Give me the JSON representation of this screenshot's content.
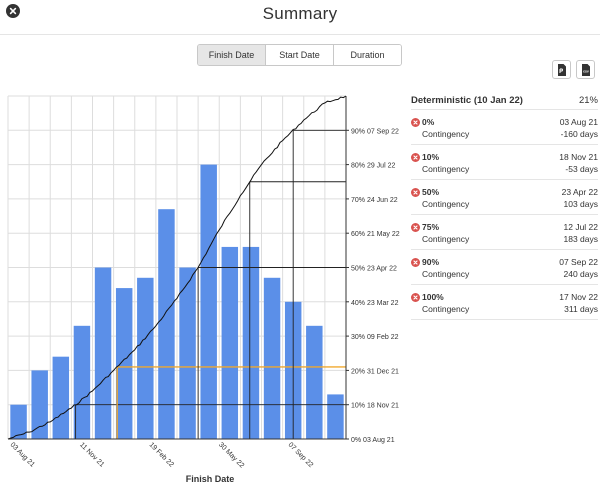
{
  "header": {
    "title": "Summary",
    "close_icon": "close-icon"
  },
  "view_toggle": {
    "options": [
      "Finish Date",
      "Start Date",
      "Duration"
    ],
    "selected": "Finish Date"
  },
  "export": {
    "buttons": [
      "pdf-export-icon",
      "csv-export-icon"
    ],
    "csv_text": "csv"
  },
  "results": {
    "deterministic": {
      "label": "Deterministic (10 Jan 22)",
      "percent": "21%"
    },
    "rows": [
      {
        "label": "0%",
        "date": "03 Aug 21",
        "contingency_label": "Contingency",
        "contingency": "-160 days"
      },
      {
        "label": "10%",
        "date": "18 Nov 21",
        "contingency_label": "Contingency",
        "contingency": "-53 days"
      },
      {
        "label": "50%",
        "date": "23 Apr 22",
        "contingency_label": "Contingency",
        "contingency": "103 days"
      },
      {
        "label": "75%",
        "date": "12 Jul 22",
        "contingency_label": "Contingency",
        "contingency": "183 days"
      },
      {
        "label": "90%",
        "date": "07 Sep 22",
        "contingency_label": "Contingency",
        "contingency": "240 days"
      },
      {
        "label": "100%",
        "date": "17 Nov 22",
        "contingency_label": "Contingency",
        "contingency": "311 days"
      }
    ]
  },
  "chart_data": {
    "type": "bar",
    "xlabel": "Finish Date",
    "x_tick_labels": [
      "03 Aug 21",
      "11 Nov 21",
      "19 Feb 22",
      "30 May 22",
      "07 Sep 22"
    ],
    "histogram_values": [
      10,
      20,
      24,
      33,
      50,
      44,
      47,
      67,
      50,
      80,
      56,
      56,
      47,
      40,
      33,
      13
    ],
    "histogram_ylim": [
      0,
      100
    ],
    "cumulative_curve": {
      "x_tick_index": [
        0,
        1,
        2,
        3,
        4,
        5,
        6,
        7,
        8,
        9,
        10,
        11,
        12,
        13,
        14,
        15,
        16
      ],
      "percent": [
        0,
        2,
        5,
        9,
        14,
        20,
        26,
        33,
        41,
        50,
        61,
        71,
        80,
        87,
        93,
        98,
        100
      ]
    },
    "right_axis_labels": [
      "0% 03 Aug 21",
      "10% 18 Nov 21",
      "20% 31 Dec 21",
      "30% 09 Feb 22",
      "40% 23 Mar 22",
      "50% 23 Apr 22",
      "60% 21 May 22",
      "70% 24 Jun 22",
      "80% 29 Jul 22",
      "90% 07 Sep 22"
    ],
    "percentile_markers": [
      {
        "percent": 10,
        "color": "#222222"
      },
      {
        "percent": 21,
        "color": "#f0a92e",
        "label": "Deterministic"
      },
      {
        "percent": 50,
        "color": "#222222"
      },
      {
        "percent": 75,
        "color": "#222222"
      },
      {
        "percent": 90,
        "color": "#222222"
      }
    ],
    "colors": {
      "bars": "#5b8fe8",
      "curve": "#111111",
      "grid": "#dddddd",
      "deterministic": "#f0a92e"
    },
    "grid": true
  }
}
